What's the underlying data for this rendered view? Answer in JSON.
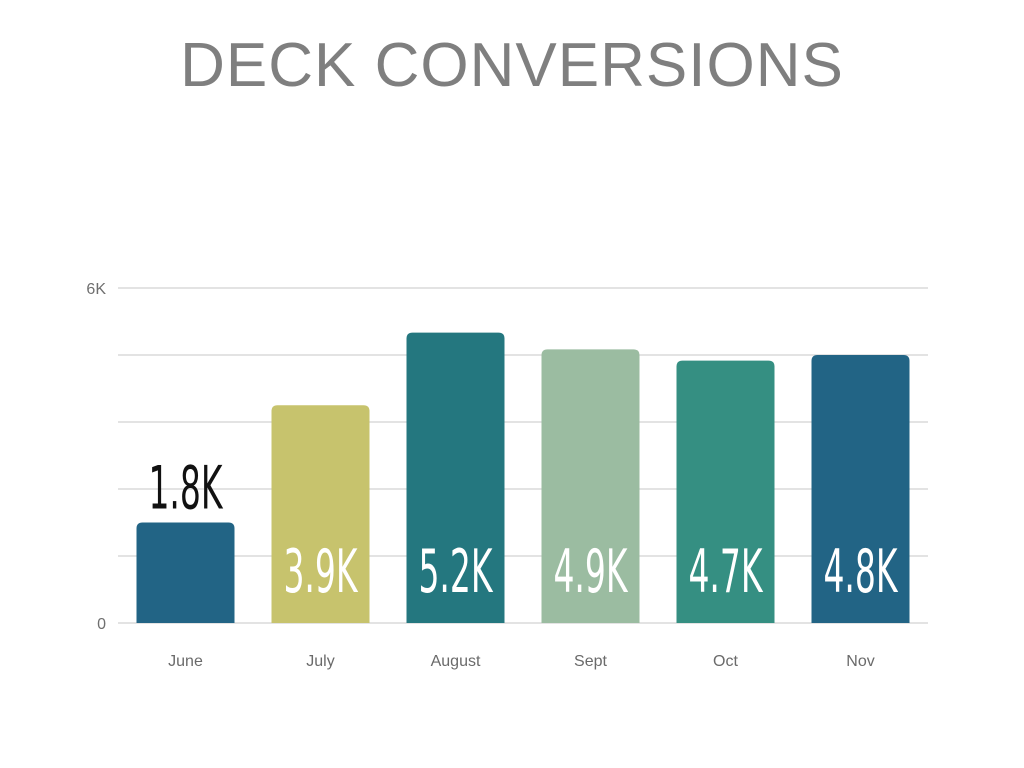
{
  "chart_data": {
    "type": "bar",
    "title": "DECK CONVERSIONS",
    "categories": [
      "June",
      "July",
      "August",
      "Sept",
      "Oct",
      "Nov"
    ],
    "values": [
      1800,
      3900,
      5200,
      4900,
      4700,
      4800
    ],
    "data_labels": [
      "1.8K",
      "3.9K",
      "5.2K",
      "4.9K",
      "4.7K",
      "4.8K"
    ],
    "colors": [
      "#226485",
      "#c7c36d",
      "#24777f",
      "#9bbca1",
      "#358f82",
      "#226485"
    ],
    "ylim": [
      0,
      6000
    ],
    "yticks": [
      0,
      6000
    ],
    "ytick_labels": [
      "0",
      "6K"
    ],
    "gridlines": [
      0,
      1200,
      2400,
      3600,
      4800,
      6000
    ],
    "grid": true,
    "xlabel": "",
    "ylabel": ""
  }
}
